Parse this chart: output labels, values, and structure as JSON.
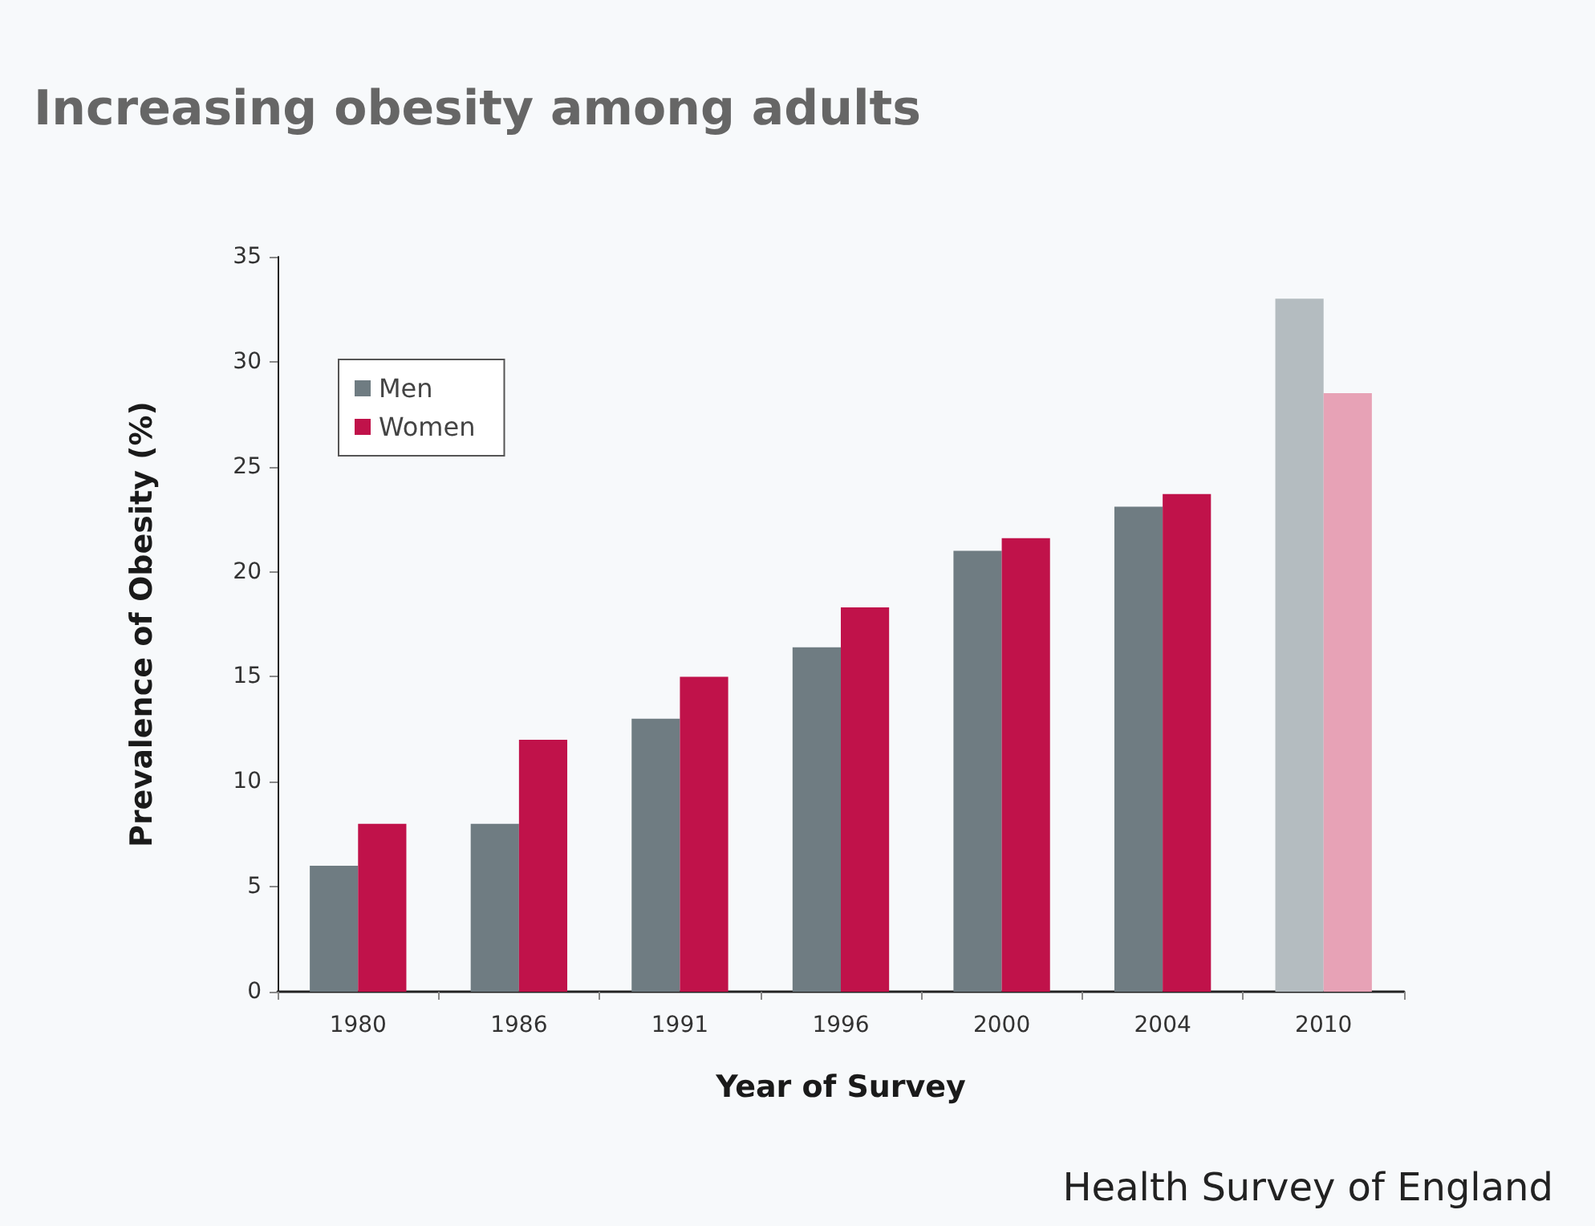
{
  "chart_data": {
    "type": "bar",
    "title": "Increasing obesity among adults",
    "xlabel": "Year of Survey",
    "ylabel": "Prevalence of Obesity (%)",
    "categories": [
      "1980",
      "1986",
      "1991",
      "1996",
      "2000",
      "2004",
      "2010"
    ],
    "series": [
      {
        "name": "Men",
        "color": "#6f7c82",
        "colors": [
          "#6f7c82",
          "#6f7c82",
          "#6f7c82",
          "#6f7c82",
          "#6f7c82",
          "#6f7c82",
          "#b4bcc0"
        ],
        "values": [
          6,
          8,
          13,
          16.4,
          21,
          23.1,
          33
        ]
      },
      {
        "name": "Women",
        "color": "#c0124a",
        "colors": [
          "#c0124a",
          "#c0124a",
          "#c0124a",
          "#c0124a",
          "#c0124a",
          "#c0124a",
          "#e7a2b6"
        ],
        "values": [
          8,
          12,
          15,
          18.3,
          21.6,
          23.7,
          28.5
        ]
      }
    ],
    "ylim": [
      0,
      35
    ],
    "yticks": [
      0,
      5,
      10,
      15,
      20,
      25,
      30,
      35
    ],
    "grid": false,
    "legend": "top left",
    "annotations": [
      "Health Survey of England"
    ]
  }
}
